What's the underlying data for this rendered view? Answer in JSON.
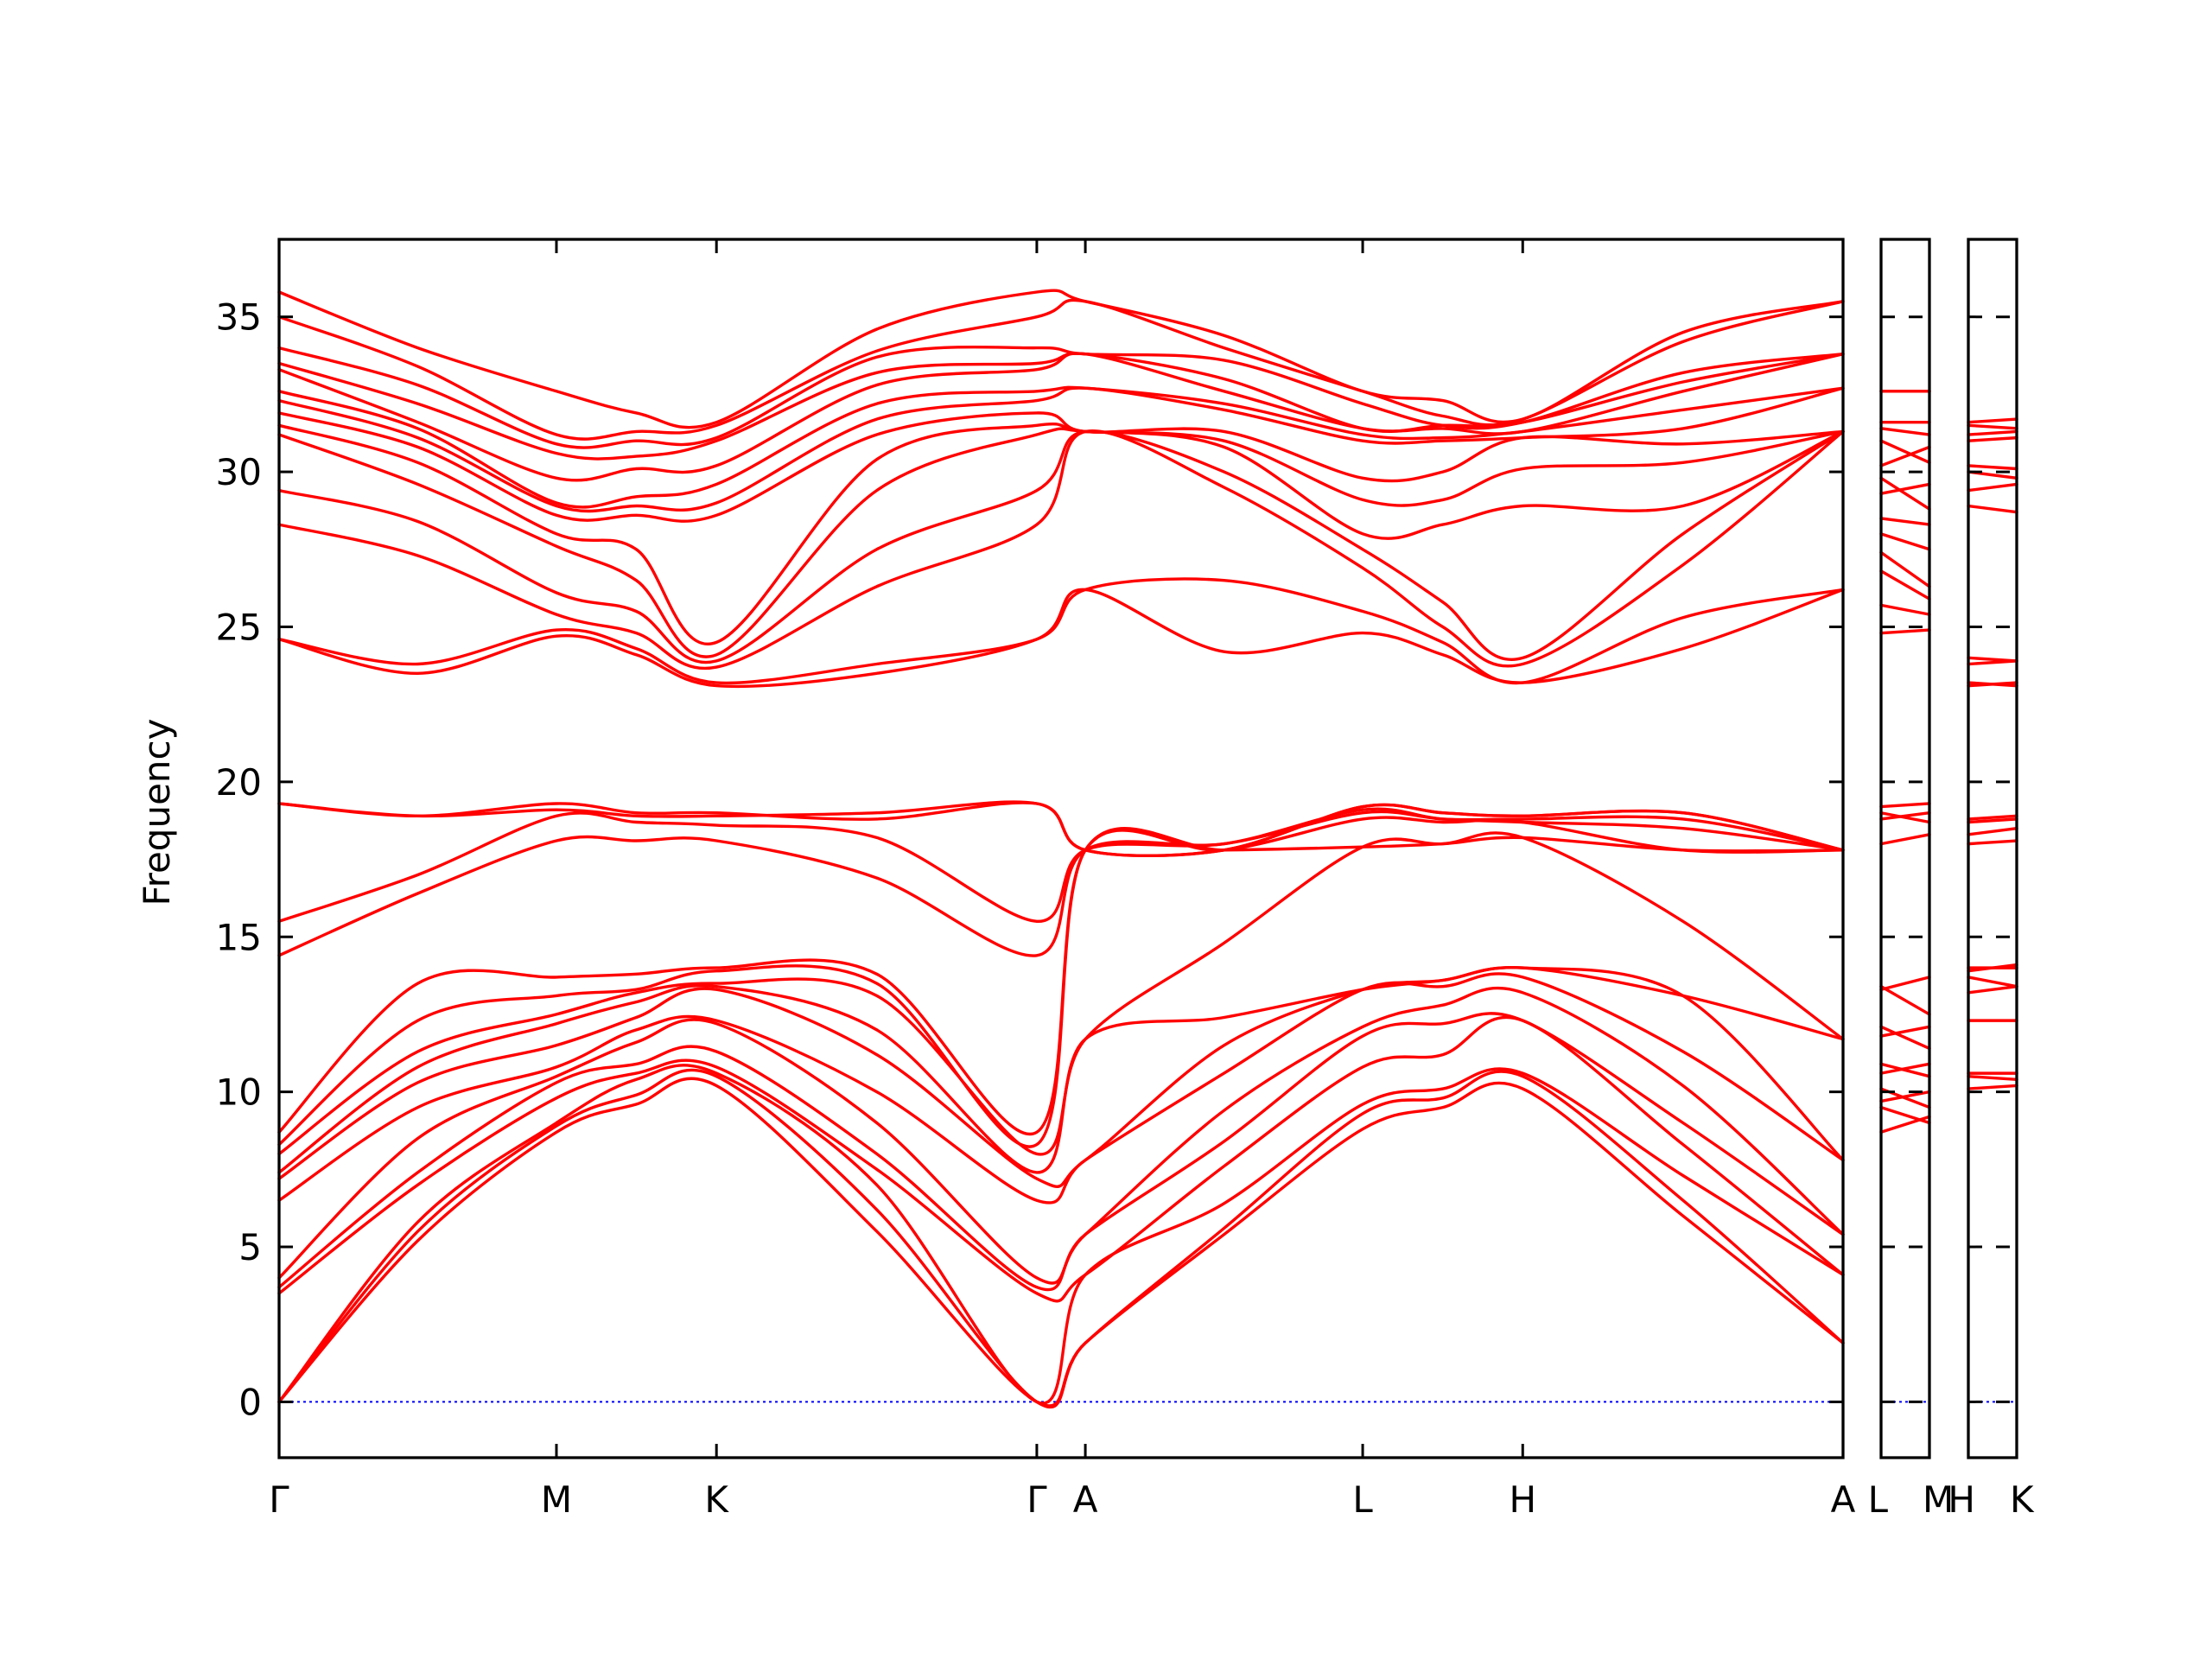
{
  "chart_data": {
    "type": "line",
    "ylabel": "Frequency",
    "ylim": [
      -1.8,
      37.5
    ],
    "yticks": [
      0,
      5,
      10,
      15,
      20,
      25,
      30,
      35
    ],
    "colors": {
      "bands": "#ff0000",
      "zero_line": "#0000ff",
      "frame": "#000000"
    },
    "panels": [
      {
        "name": "main-path",
        "segments": [
          "Γ-M",
          "M-K",
          "K-Γ",
          "Γ-A",
          "A-L",
          "L-H",
          "H-A"
        ],
        "xticks": [
          {
            "label": "Γ",
            "x": 0
          },
          {
            "label": "M",
            "x": 1.0
          },
          {
            "label": "K",
            "x": 1.577
          },
          {
            "label": "Γ",
            "x": 2.732
          },
          {
            "label": "A",
            "x": 2.907
          },
          {
            "label": "L",
            "x": 3.907
          },
          {
            "label": "H",
            "x": 4.484
          },
          {
            "label": "A",
            "x": 5.639
          }
        ],
        "band_knots_x": [
          0,
          0.5,
          1.0,
          1.288,
          1.577,
          2.155,
          2.732,
          2.907,
          3.407,
          3.907,
          4.196,
          4.484,
          5.062,
          5.639
        ],
        "bands": [
          [
            0,
            5.2,
            8.7,
            9.6,
            10.2,
            5.5,
            0,
            1.9,
            5.4,
            8.8,
            9.5,
            10.1,
            6.0,
            1.9
          ],
          [
            0,
            5.5,
            8.9,
            9.9,
            10.5,
            6.2,
            0,
            1.9,
            5.6,
            9.3,
            9.8,
            10.5,
            6.5,
            1.9
          ],
          [
            0,
            5.8,
            9.0,
            10.4,
            10.6,
            7.0,
            0,
            4.1,
            6.4,
            9.6,
            10.1,
            10.6,
            7.3,
            4.1
          ],
          [
            3.5,
            7.0,
            9.8,
            10.6,
            10.8,
            7.5,
            3.5,
            4.1,
            7.6,
            10.8,
            11.2,
            12.3,
            8.3,
            4.1
          ],
          [
            3.7,
            7.4,
            10.3,
            10.9,
            11.3,
            8.0,
            3.7,
            5.4,
            8.4,
            11.8,
            12.2,
            12.3,
            9.0,
            5.4
          ],
          [
            4.0,
            8.5,
            10.5,
            11.6,
            12.2,
            9.0,
            4.0,
            5.4,
            9.4,
            12.1,
            12.8,
            13.2,
            10.2,
            5.4
          ],
          [
            6.5,
            9.5,
            10.8,
            12.0,
            12.3,
            10.0,
            6.5,
            7.8,
            10.6,
            13.3,
            13.4,
            13.7,
            11.3,
            7.8
          ],
          [
            7.2,
            10.3,
            11.5,
            12.4,
            13.3,
            11.2,
            7.2,
            7.8,
            11.5,
            13.3,
            13.6,
            14.0,
            13.1,
            7.8
          ],
          [
            7.4,
            10.8,
            12.2,
            12.9,
            13.4,
            12.0,
            7.4,
            11.7,
            12.4,
            13.3,
            13.6,
            14.0,
            13.1,
            11.7
          ],
          [
            8.0,
            11.3,
            12.5,
            13.2,
            13.5,
            13.1,
            8.0,
            11.7,
            14.8,
            17.9,
            18.0,
            18.2,
            15.5,
            11.7
          ],
          [
            8.3,
            12.3,
            13.1,
            13.3,
            13.9,
            13.5,
            8.3,
            17.8,
            17.8,
            17.9,
            18.0,
            18.2,
            17.8,
            17.8
          ],
          [
            8.7,
            13.5,
            13.7,
            13.8,
            14.0,
            13.8,
            8.7,
            17.8,
            17.8,
            18.8,
            18.7,
            18.7,
            17.8,
            17.8
          ],
          [
            14.4,
            16.4,
            18.1,
            18.1,
            18.1,
            16.9,
            14.4,
            17.8,
            18.0,
            19.0,
            18.8,
            18.7,
            18.5,
            17.8
          ],
          [
            15.5,
            17.0,
            18.9,
            18.7,
            18.6,
            18.2,
            15.5,
            17.8,
            18.0,
            19.1,
            18.8,
            18.8,
            18.8,
            17.8
          ],
          [
            19.3,
            18.9,
            19.1,
            18.9,
            18.9,
            19.0,
            19.3,
            17.8,
            17.8,
            19.2,
            19.0,
            18.9,
            19.0,
            17.8
          ],
          [
            19.3,
            18.9,
            19.3,
            19.0,
            19.0,
            18.8,
            19.3,
            17.8,
            17.8,
            19.2,
            19.0,
            18.9,
            19.0,
            17.8
          ],
          [
            24.6,
            23.5,
            24.7,
            24.1,
            23.1,
            23.5,
            24.6,
            26.2,
            24.2,
            24.8,
            24.1,
            23.2,
            24.3,
            26.2
          ],
          [
            24.6,
            23.8,
            24.9,
            24.3,
            23.2,
            23.8,
            24.6,
            26.2,
            26.5,
            25.5,
            24.5,
            23.2,
            25.3,
            26.2
          ],
          [
            28.3,
            27.3,
            25.4,
            24.8,
            23.7,
            26.3,
            28.3,
            31.3,
            29.5,
            26.9,
            25.0,
            23.8,
            27.0,
            31.3
          ],
          [
            29.4,
            28.4,
            26.1,
            25.5,
            23.9,
            27.5,
            29.4,
            31.3,
            30.0,
            27.5,
            25.8,
            24.0,
            28.0,
            31.3
          ],
          [
            31.2,
            29.6,
            27.6,
            26.5,
            24.1,
            29.4,
            31.2,
            31.3,
            30.8,
            28.0,
            28.3,
            28.9,
            28.9,
            31.3
          ],
          [
            31.5,
            30.3,
            28.0,
            27.5,
            24.5,
            30.4,
            31.5,
            31.3,
            31.0,
            29.1,
            29.1,
            30.1,
            30.3,
            31.3
          ],
          [
            31.9,
            30.8,
            28.6,
            28.6,
            28.6,
            31.2,
            31.9,
            31.3,
            31.3,
            29.8,
            30.0,
            31.1,
            30.9,
            31.3
          ],
          [
            32.3,
            31.1,
            28.9,
            28.9,
            29.0,
            31.7,
            32.3,
            32.7,
            32.0,
            31.0,
            31.0,
            31.1,
            31.4,
            32.7
          ],
          [
            32.6,
            31.4,
            29.0,
            29.2,
            29.6,
            32.2,
            32.6,
            32.7,
            32.2,
            31.2,
            31.1,
            31.3,
            32.0,
            32.7
          ],
          [
            33.3,
            31.6,
            29.8,
            30.1,
            30.2,
            32.8,
            33.3,
            33.8,
            32.6,
            31.4,
            31.4,
            31.3,
            32.6,
            33.8
          ],
          [
            33.5,
            32.2,
            30.6,
            30.5,
            31.0,
            33.2,
            33.5,
            33.8,
            33.0,
            31.4,
            31.5,
            31.6,
            32.9,
            33.8
          ],
          [
            34.0,
            32.8,
            30.9,
            31.0,
            31.1,
            33.7,
            34.0,
            33.8,
            33.6,
            32.2,
            31.5,
            31.6,
            33.2,
            33.8
          ],
          [
            35.0,
            33.4,
            31.2,
            31.3,
            31.5,
            33.9,
            35.0,
            35.5,
            34.0,
            32.6,
            31.8,
            31.7,
            34.2,
            35.5
          ],
          [
            35.8,
            34.0,
            32.6,
            31.9,
            31.6,
            34.6,
            35.8,
            35.5,
            34.4,
            32.6,
            32.3,
            31.7,
            34.5,
            35.5
          ]
        ],
        "zero_line": true
      },
      {
        "name": "L-M-panel",
        "xticks": [
          {
            "label": "L",
            "x": 0
          },
          {
            "label": "M",
            "x": 1
          }
        ],
        "bands": [
          [
            8.7,
            9.2
          ],
          [
            9.5,
            9.0
          ],
          [
            9.7,
            10.0
          ],
          [
            10.1,
            9.5
          ],
          [
            10.6,
            10.9
          ],
          [
            10.9,
            10.5
          ],
          [
            11.8,
            12.1
          ],
          [
            12.1,
            11.4
          ],
          [
            13.3,
            13.7
          ],
          [
            13.4,
            12.5
          ],
          [
            18.0,
            18.3
          ],
          [
            18.8,
            19.0
          ],
          [
            19.0,
            18.7
          ],
          [
            19.2,
            19.3
          ],
          [
            24.8,
            24.9
          ],
          [
            25.7,
            25.4
          ],
          [
            26.8,
            25.9
          ],
          [
            27.4,
            26.3
          ],
          [
            28.0,
            27.5
          ],
          [
            28.5,
            28.3
          ],
          [
            29.3,
            29.6
          ],
          [
            29.8,
            28.8
          ],
          [
            30.2,
            30.8
          ],
          [
            31.0,
            30.3
          ],
          [
            31.4,
            31.2
          ],
          [
            31.6,
            31.6
          ],
          [
            32.6,
            32.6
          ],
          [
            32.6,
            32.6
          ]
        ],
        "zero_line": true
      },
      {
        "name": "H-K-panel",
        "xticks": [
          {
            "label": "H",
            "x": 0
          },
          {
            "label": "K",
            "x": 1
          }
        ],
        "bands": [
          [
            10.1,
            10.2
          ],
          [
            10.5,
            10.4
          ],
          [
            10.6,
            10.6
          ],
          [
            12.3,
            12.3
          ],
          [
            13.2,
            13.4
          ],
          [
            13.7,
            13.4
          ],
          [
            14.0,
            14.0
          ],
          [
            13.9,
            14.1
          ],
          [
            18.0,
            18.1
          ],
          [
            18.3,
            18.5
          ],
          [
            18.7,
            18.8
          ],
          [
            18.8,
            18.9
          ],
          [
            23.1,
            23.2
          ],
          [
            23.2,
            23.1
          ],
          [
            23.8,
            23.9
          ],
          [
            24.0,
            23.9
          ],
          [
            28.9,
            28.7
          ],
          [
            29.4,
            29.6
          ],
          [
            30.0,
            29.8
          ],
          [
            30.2,
            30.1
          ],
          [
            31.0,
            31.1
          ],
          [
            31.2,
            31.3
          ],
          [
            31.5,
            31.4
          ],
          [
            31.6,
            31.7
          ]
        ],
        "zero_line": true
      }
    ]
  }
}
